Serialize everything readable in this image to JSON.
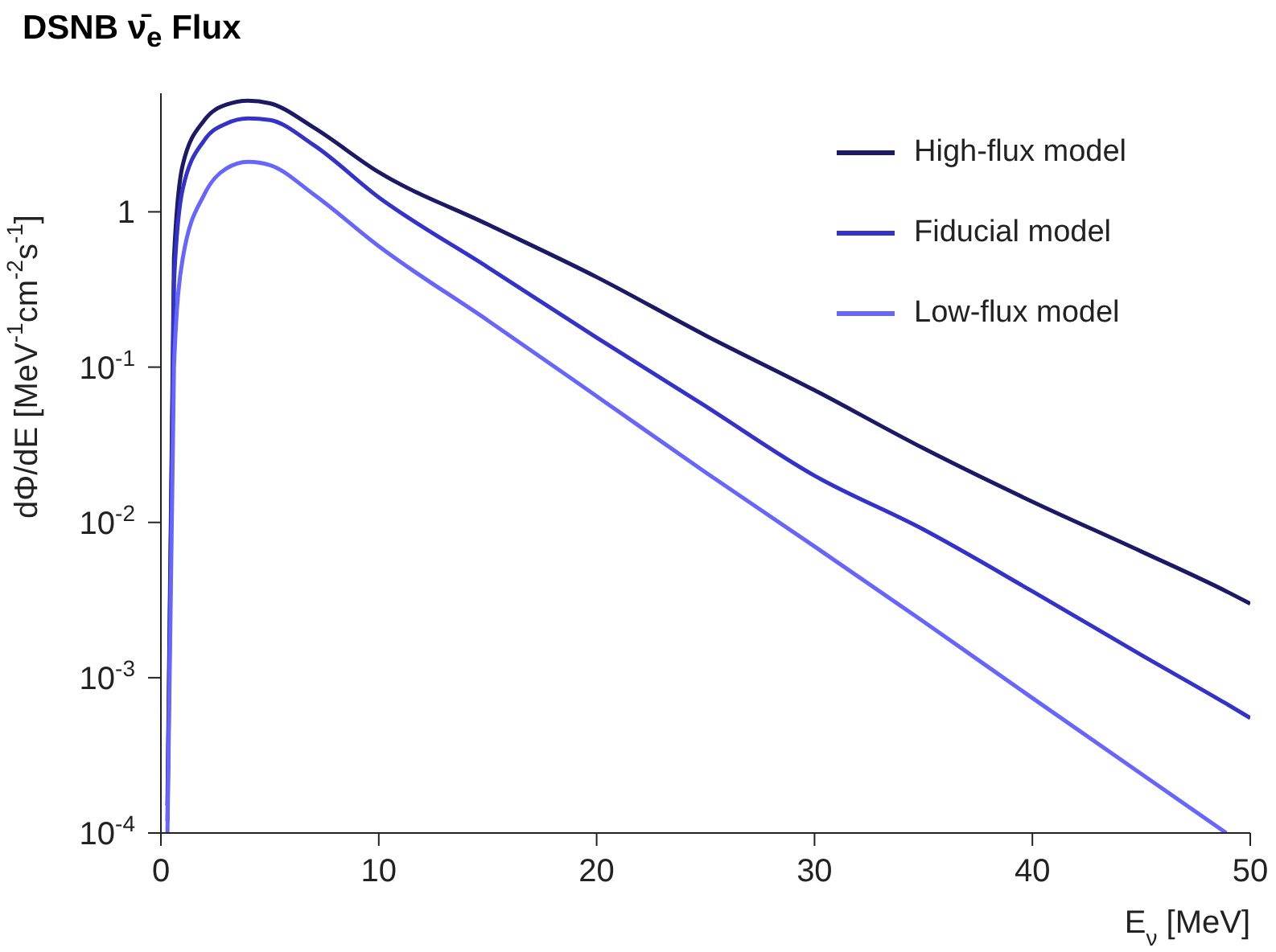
{
  "chart_data": {
    "type": "line",
    "title": "DSNB ν̄$_{e}$ Flux",
    "xlabel": "E$_{ν}$ [MeV]",
    "ylabel": "dΦ/dE [MeV$^{-1}$cm$^{-2}$s$^{-1}$]",
    "x": [
      0.3,
      0.6,
      1,
      2,
      3,
      4,
      5,
      7,
      10,
      15,
      20,
      25,
      30,
      35,
      40,
      45,
      48.9,
      50
    ],
    "series": [
      {
        "name": "High-flux model",
        "color": "#1a1a66",
        "values": [
          0.00015,
          0.5,
          2.0,
          3.9,
          4.9,
          5.2,
          5.0,
          3.5,
          1.8,
          0.83,
          0.38,
          0.16,
          0.071,
          0.03,
          0.0136,
          0.0065,
          0.0036,
          0.003
        ]
      },
      {
        "name": "Fiducial model",
        "color": "#3333cc",
        "values": [
          0.00012,
          0.35,
          1.4,
          2.9,
          3.7,
          4.0,
          3.9,
          2.7,
          1.24,
          0.44,
          0.155,
          0.056,
          0.02,
          0.009,
          0.0036,
          0.0014,
          0.00068,
          0.00055
        ]
      },
      {
        "name": "Low-flux model",
        "color": "#6666ff",
        "values": [
          0.0001,
          0.1,
          0.5,
          1.3,
          1.9,
          2.1,
          2.0,
          1.3,
          0.6,
          0.2,
          0.065,
          0.021,
          0.007,
          0.0023,
          0.00074,
          0.00024,
          0.0001,
          null
        ]
      }
    ],
    "xlim": [
      0,
      50
    ],
    "xticks": [
      0,
      10,
      20,
      30,
      40,
      50
    ],
    "ylim": [
      0.0001,
      5.8
    ],
    "log": true,
    "yticks": [
      {
        "value": 0.0001,
        "label": "10$^{-4}$"
      },
      {
        "value": 0.001,
        "label": "10$^{-3}$"
      },
      {
        "value": 0.01,
        "label": "10$^{-2}$"
      },
      {
        "value": 0.1,
        "label": "10$^{-1}$"
      },
      1
    ],
    "legend": "top right",
    "grid": false,
    "marker": "none",
    "line_style": "solid"
  }
}
